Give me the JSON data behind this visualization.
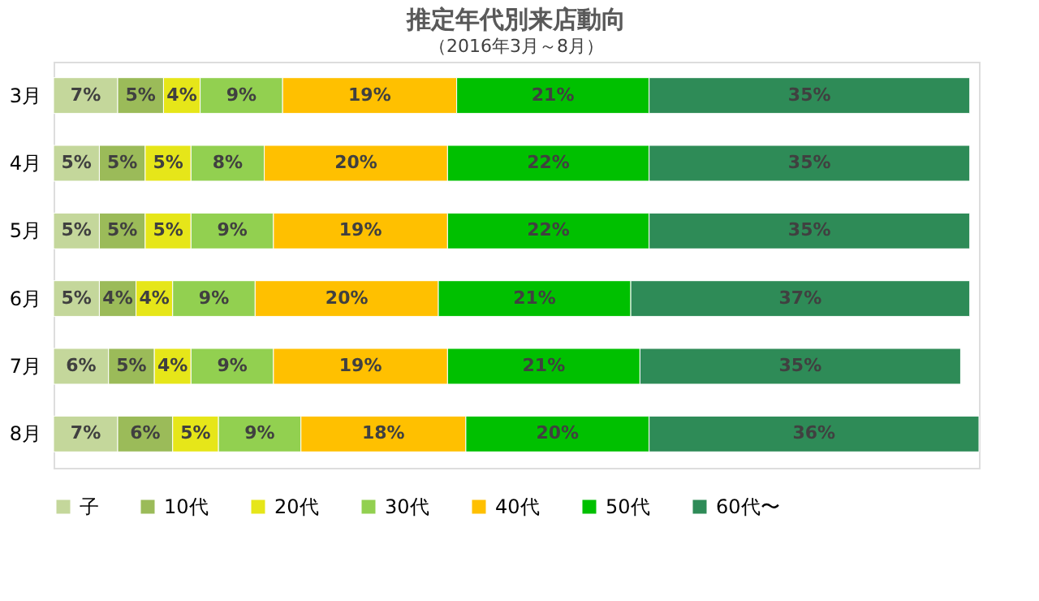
{
  "chart_data": {
    "type": "bar",
    "orientation": "horizontal",
    "stacked": true,
    "title": "推定年代別来店動向",
    "subtitle": "（2016年3月～8月）",
    "categories": [
      "3月",
      "4月",
      "5月",
      "6月",
      "7月",
      "8月"
    ],
    "series": [
      {
        "name": "子",
        "color": "#c4d79b",
        "values": [
          7,
          5,
          5,
          5,
          6,
          7
        ],
        "value_labels": [
          "7%",
          "5%",
          "5%",
          "5%",
          "6%",
          "7%"
        ]
      },
      {
        "name": "10代",
        "color": "#9bbb59",
        "values": [
          5,
          5,
          5,
          4,
          5,
          6
        ],
        "value_labels": [
          "5%",
          "5%",
          "5%",
          "4%",
          "5%",
          "6%"
        ]
      },
      {
        "name": "20代",
        "color": "#e6e619",
        "values": [
          4,
          5,
          5,
          4,
          4,
          5
        ],
        "value_labels": [
          "4%",
          "5%",
          "5%",
          "4%",
          "4%",
          "5%"
        ]
      },
      {
        "name": "30代",
        "color": "#92d050",
        "values": [
          9,
          8,
          9,
          9,
          9,
          9
        ],
        "value_labels": [
          "9%",
          "8%",
          "9%",
          "9%",
          "9%",
          "9%"
        ]
      },
      {
        "name": "40代",
        "color": "#ffc000",
        "values": [
          19,
          20,
          19,
          20,
          19,
          18
        ],
        "value_labels": [
          "19%",
          "20%",
          "19%",
          "20%",
          "19%",
          "18%"
        ]
      },
      {
        "name": "50代",
        "color": "#00c000",
        "values": [
          21,
          22,
          22,
          21,
          21,
          20
        ],
        "value_labels": [
          "21%",
          "22%",
          "22%",
          "21%",
          "21%",
          "20%"
        ]
      },
      {
        "name": "60代〜",
        "color": "#2e8b57",
        "values": [
          35,
          35,
          35,
          37,
          35,
          36
        ],
        "value_labels": [
          "35%",
          "35%",
          "35%",
          "37%",
          "35%",
          "36%"
        ]
      }
    ],
    "legend": "bottom",
    "tick_labels": "y",
    "grid": false
  }
}
